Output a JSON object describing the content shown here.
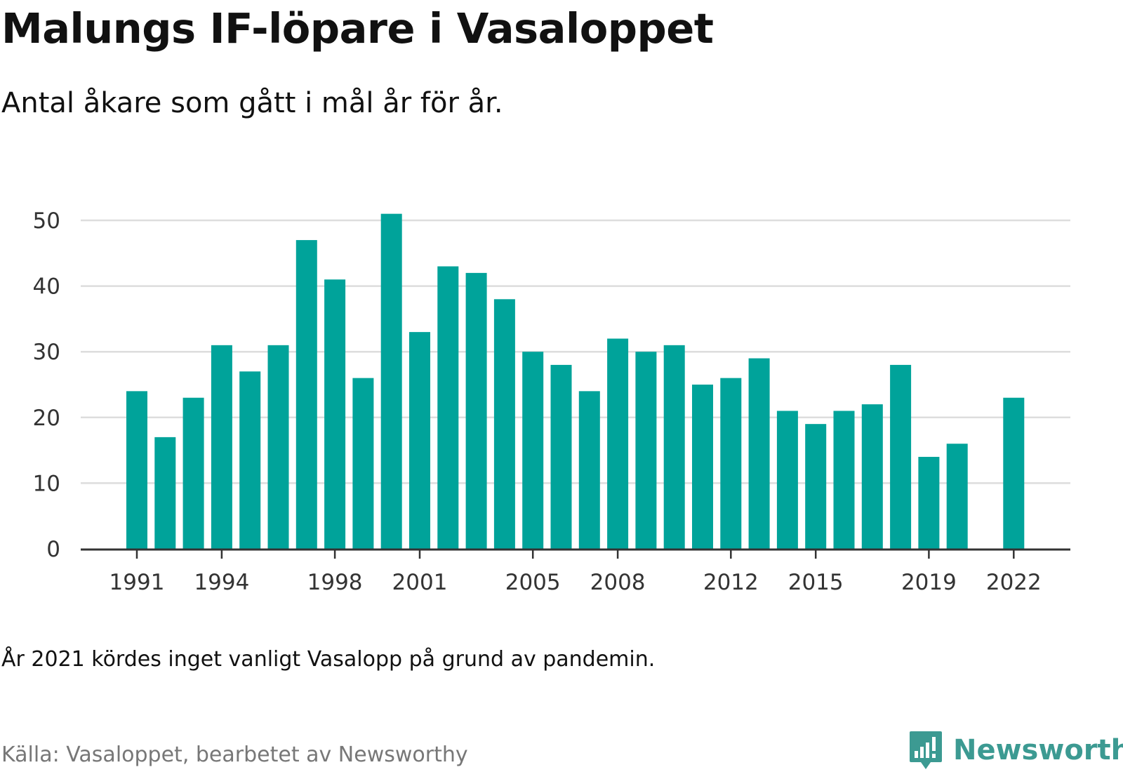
{
  "title": "Malungs IF-löpare i Vasaloppet",
  "subtitle": "Antal åkare som gått i mål år för år.",
  "note": "År 2021 kördes inget vanligt Vasalopp på grund av pandemin.",
  "source": "Källa: Vasaloppet, bearbetet av Newsworthy",
  "brand": {
    "name": "Newsworthy",
    "icon": "newsworthy-logo-icon",
    "color": "#3c9a92"
  },
  "chart_data": {
    "type": "bar",
    "title": "Malungs IF-löpare i Vasaloppet",
    "subtitle": "Antal åkare som gått i mål år för år.",
    "xlabel": "",
    "ylabel": "",
    "ylim": [
      0,
      50
    ],
    "yticks": [
      0,
      10,
      20,
      30,
      40,
      50
    ],
    "xtick_labels": [
      "1991",
      "1994",
      "1998",
      "2001",
      "2005",
      "2008",
      "2012",
      "2015",
      "2019",
      "2022"
    ],
    "grid": true,
    "bar_color": "#00a39a",
    "categories": [
      "1991",
      "1992",
      "1993",
      "1994",
      "1995",
      "1996",
      "1997",
      "1998",
      "1999",
      "2000",
      "2001",
      "2002",
      "2003",
      "2004",
      "2005",
      "2006",
      "2007",
      "2008",
      "2009",
      "2010",
      "2011",
      "2012",
      "2013",
      "2014",
      "2015",
      "2016",
      "2017",
      "2018",
      "2019",
      "2020",
      "2021",
      "2022"
    ],
    "values": [
      24,
      17,
      23,
      31,
      27,
      31,
      47,
      41,
      26,
      51,
      33,
      43,
      42,
      38,
      30,
      28,
      24,
      32,
      30,
      31,
      25,
      26,
      29,
      21,
      19,
      21,
      22,
      28,
      14,
      16,
      null,
      23
    ]
  }
}
